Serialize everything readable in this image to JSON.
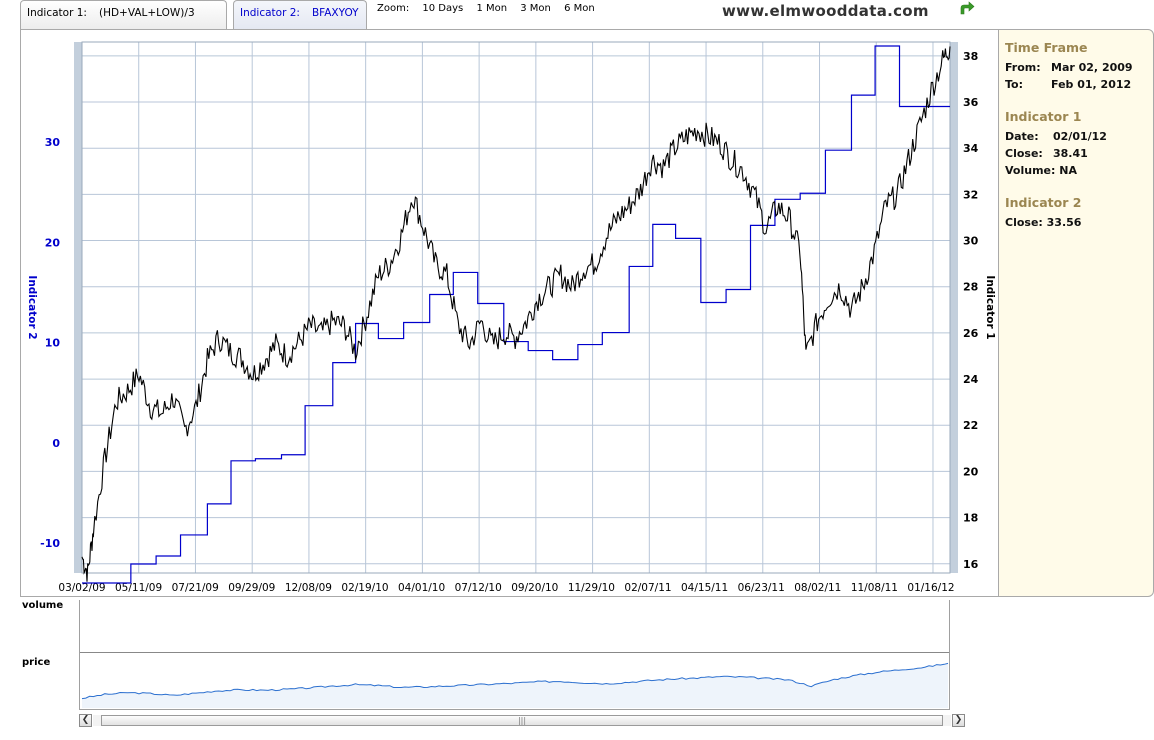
{
  "tabs": {
    "tab1_label": "Indicator 1:",
    "tab1_value": "(HD+VAL+LOW)/3",
    "tab2_label": "Indicator 2:",
    "tab2_value": "BFAXYOY"
  },
  "zoom": {
    "label": "Zoom:",
    "options": [
      "10 Days",
      "1 Mon",
      "3 Mon",
      "6 Mon"
    ]
  },
  "brand": "www.elmwooddata.com",
  "icons": {
    "export": "green-arrow-icon",
    "scroll_left": "chevron-left-icon",
    "scroll_right": "chevron-right-icon",
    "grip": "grip-icon"
  },
  "colors": {
    "indicator1": "#000000",
    "indicator2": "#0000cc",
    "grid": "#b8c6d8",
    "axis_band": "#c3cfdc",
    "panel_bg": "#fffbe9",
    "panel_head": "#9b8651",
    "navigator_line": "#2b6fcf"
  },
  "side": {
    "tf_title": "Time Frame",
    "from_label": "From:",
    "from_value": "Mar 02, 2009",
    "to_label": "To:",
    "to_value": "Feb 01, 2012",
    "i1_title": "Indicator 1",
    "i1_date_label": "Date:",
    "i1_date_value": "02/01/12",
    "i1_close_label": "Close:",
    "i1_close_value": "38.41",
    "i1_volume_label": "Volume:",
    "i1_volume_value": "NA",
    "i2_title": "Indicator 2",
    "i2_close_label": "Close:",
    "i2_close_value": "33.56"
  },
  "navigator": {
    "volume_label": "volume",
    "price_label": "price",
    "grip": "|||"
  },
  "chart_data": {
    "type": "line",
    "x_tick_labels": [
      "03/02/09",
      "05/11/09",
      "07/21/09",
      "09/29/09",
      "12/08/09",
      "02/19/10",
      "04/01/10",
      "07/12/10",
      "09/20/10",
      "11/29/10",
      "02/07/11",
      "04/15/11",
      "06/23/11",
      "08/02/11",
      "11/08/11",
      "01/16/12"
    ],
    "x_range": [
      "03/02/09",
      "02/01/12"
    ],
    "y_left": {
      "label": "Indicator 2",
      "ticks": [
        -10,
        0,
        10,
        20,
        30
      ],
      "range": [
        -13,
        40
      ]
    },
    "y_right": {
      "label": "Indicator 1",
      "ticks": [
        16,
        18,
        20,
        22,
        24,
        26,
        28,
        30,
        32,
        34,
        36,
        38
      ],
      "range": [
        15.6,
        38.6
      ]
    },
    "grid": true,
    "series": [
      {
        "name": "(HD+VAL+LOW)/3",
        "axis": "right",
        "x": [
          "03/02/09",
          "03/09/09",
          "03/16/09",
          "03/30/09",
          "04/13/09",
          "04/27/09",
          "05/11/09",
          "05/25/09",
          "06/08/09",
          "06/22/09",
          "07/06/09",
          "07/20/09",
          "08/03/09",
          "08/17/09",
          "08/31/09",
          "09/14/09",
          "09/28/09",
          "10/12/09",
          "10/26/09",
          "11/09/09",
          "11/23/09",
          "12/07/09",
          "12/21/09",
          "01/04/10",
          "01/18/10",
          "02/01/10",
          "02/15/10",
          "03/01/10",
          "03/15/10",
          "03/29/10",
          "04/12/10",
          "04/26/10",
          "05/10/10",
          "05/24/10",
          "06/07/10",
          "06/21/10",
          "07/05/10",
          "07/19/10",
          "08/02/10",
          "08/16/10",
          "08/30/10",
          "09/13/10",
          "09/27/10",
          "10/11/10",
          "10/25/10",
          "11/08/10",
          "11/22/10",
          "12/06/10",
          "12/20/10",
          "01/03/11",
          "01/17/11",
          "01/31/11",
          "02/14/11",
          "02/28/11",
          "03/14/11",
          "03/28/11",
          "04/11/11",
          "04/25/11",
          "05/09/11",
          "05/23/11",
          "06/06/11",
          "06/20/11",
          "07/04/11",
          "07/18/11",
          "08/01/11",
          "08/08/11",
          "08/22/11",
          "09/05/11",
          "09/19/11",
          "10/03/11",
          "10/17/11",
          "10/31/11",
          "11/14/11",
          "11/28/11",
          "12/12/11",
          "12/26/11",
          "01/09/12",
          "01/23/12",
          "02/01/12"
        ],
        "y": [
          16.3,
          15.6,
          17.5,
          20.5,
          23,
          23.5,
          24.2,
          22.8,
          22.5,
          23.2,
          21.8,
          22.8,
          24.8,
          25.8,
          25.2,
          24.9,
          24.2,
          24.8,
          25.5,
          25.0,
          25.6,
          26.3,
          26.0,
          26.5,
          26.3,
          25.2,
          26.8,
          28.5,
          29.0,
          30.2,
          32.0,
          30.5,
          29.0,
          28.5,
          26.3,
          25.5,
          26.5,
          25.5,
          26.0,
          25.8,
          26.5,
          27.5,
          28.0,
          28.5,
          28.0,
          28.8,
          29.0,
          30.2,
          31.0,
          31.5,
          32.2,
          33.5,
          33.2,
          34.0,
          34.5,
          34.8,
          34.5,
          34.2,
          33.5,
          33.0,
          32.0,
          30.5,
          31.5,
          31.0,
          29.5,
          25.0,
          26.5,
          27.5,
          28.0,
          27.0,
          28.0,
          29.5,
          31.5,
          32.0,
          33.5,
          35.0,
          36.5,
          37.8,
          38.41
        ]
      },
      {
        "name": "BFAXYOY",
        "axis": "left",
        "step": true,
        "x": [
          "03/02/09",
          "05/01/09",
          "06/01/09",
          "07/01/09",
          "08/03/09",
          "09/01/09",
          "10/01/09",
          "11/02/09",
          "12/01/09",
          "01/04/10",
          "02/01/10",
          "03/01/10",
          "04/01/10",
          "05/03/10",
          "06/01/10",
          "07/01/10",
          "08/02/10",
          "09/01/10",
          "10/01/10",
          "11/01/10",
          "12/01/10",
          "01/03/11",
          "02/01/11",
          "03/01/11",
          "04/01/11",
          "05/02/11",
          "06/01/11",
          "07/01/11",
          "08/01/11",
          "09/01/11",
          "10/03/11",
          "11/01/11",
          "12/01/11",
          "02/01/12"
        ],
        "y": [
          -14.0,
          -12.1,
          -11.3,
          -9.2,
          -6.1,
          -1.8,
          -1.6,
          -1.2,
          3.7,
          8.0,
          11.9,
          10.4,
          12.0,
          14.8,
          17.0,
          13.9,
          10.1,
          9.2,
          8.3,
          9.8,
          11.0,
          17.6,
          21.8,
          20.4,
          14.0,
          15.3,
          21.7,
          24.3,
          24.9,
          29.2,
          34.7,
          39.6,
          33.56,
          33.56
        ]
      }
    ],
    "navigator": {
      "series_label": "price",
      "y": [
        23,
        23.8,
        24.2,
        24.0,
        23.6,
        24.1,
        24.6,
        24.8,
        24.7,
        24.9,
        25.2,
        25.6,
        25.9,
        25.7,
        25.3,
        25.4,
        25.6,
        25.8,
        26.0,
        26.2,
        26.5,
        26.6,
        26.3,
        26.1,
        26.4,
        26.8,
        27.1,
        27.3,
        27.6,
        27.5,
        27.2,
        26.9,
        25.6,
        27.0,
        27.9,
        28.6,
        29.1,
        29.6,
        30.4
      ]
    }
  }
}
